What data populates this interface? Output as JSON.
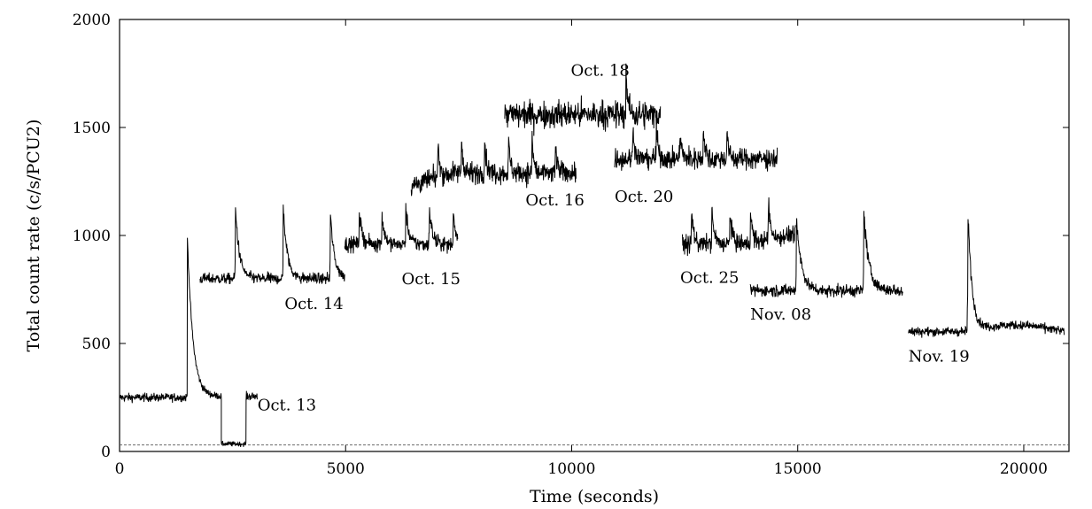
{
  "chart_data": {
    "type": "line",
    "xlabel": "Time (seconds)",
    "ylabel": "Total count rate (c/s/PCU2)",
    "xlim": [
      0,
      21000
    ],
    "ylim": [
      0,
      2000
    ],
    "xticks": [
      0,
      5000,
      10000,
      15000,
      20000
    ],
    "yticks": [
      0,
      500,
      1000,
      1500,
      2000
    ],
    "grid": false,
    "colors": {
      "trace": "#000000",
      "background_line": "#555555"
    },
    "background_level": 30,
    "series": [
      {
        "name": "Oct. 13",
        "label_at": [
          3050,
          190
        ],
        "segments": [
          {
            "x": [
              0,
              1480
            ],
            "level": 250,
            "noise": 14
          },
          {
            "x": [
              2250,
              2800
            ],
            "level": 35,
            "noise": 8
          },
          {
            "x": [
              2800,
              3050
            ],
            "level": 255,
            "noise": 14
          }
        ],
        "flares": [
          {
            "x": 1500,
            "peak": 1000,
            "decay": 120,
            "segment": 0
          }
        ],
        "bridge": {
          "x": [
            1480,
            2250
          ],
          "level": 255
        }
      },
      {
        "name": "Oct. 14",
        "label_at": [
          3650,
          660
        ],
        "segments": [
          {
            "x": [
              1780,
              4980
            ],
            "level": 800,
            "noise": 18
          }
        ],
        "flares": [
          {
            "x": 2560,
            "peak": 1160,
            "decay": 90
          },
          {
            "x": 3620,
            "peak": 1160,
            "decay": 90
          },
          {
            "x": 4660,
            "peak": 1130,
            "decay": 90
          }
        ]
      },
      {
        "name": "Oct. 15",
        "label_at": [
          6240,
          775
        ],
        "segments": [
          {
            "x": [
              4980,
              7480
            ],
            "level": 960,
            "noise": 25
          }
        ],
        "flares": [
          {
            "x": 5300,
            "peak": 1130,
            "decay": 60
          },
          {
            "x": 5800,
            "peak": 1120,
            "decay": 60
          },
          {
            "x": 6330,
            "peak": 1150,
            "decay": 60
          },
          {
            "x": 6850,
            "peak": 1150,
            "decay": 60
          },
          {
            "x": 7380,
            "peak": 1130,
            "decay": 60
          }
        ]
      },
      {
        "name": "Oct. 16",
        "label_at": [
          8980,
          1140
        ],
        "segments": [
          {
            "x": [
              6450,
              10100
            ],
            "level": 1290,
            "noise": 35,
            "start": 1230
          }
        ],
        "flares": [
          {
            "x": 7040,
            "peak": 1480,
            "decay": 40
          },
          {
            "x": 7560,
            "peak": 1470,
            "decay": 40
          },
          {
            "x": 8070,
            "peak": 1480,
            "decay": 40
          },
          {
            "x": 8600,
            "peak": 1470,
            "decay": 40
          },
          {
            "x": 9120,
            "peak": 1480,
            "decay": 40
          },
          {
            "x": 9640,
            "peak": 1430,
            "decay": 40
          }
        ]
      },
      {
        "name": "Oct. 18",
        "label_at": [
          9980,
          1740
        ],
        "segments": [
          {
            "x": [
              8520,
              11970
            ],
            "level": 1560,
            "noise": 45
          }
        ],
        "flares": [
          {
            "x": 11200,
            "peak": 1790,
            "decay": 40
          }
        ]
      },
      {
        "name": "Oct. 20",
        "label_at": [
          10950,
          1155
        ],
        "segments": [
          {
            "x": [
              10950,
              14550
            ],
            "level": 1355,
            "noise": 35
          }
        ],
        "flares": [
          {
            "x": 11350,
            "peak": 1550,
            "decay": 40
          },
          {
            "x": 11870,
            "peak": 1520,
            "decay": 40
          },
          {
            "x": 12390,
            "peak": 1500,
            "decay": 40
          },
          {
            "x": 12910,
            "peak": 1510,
            "decay": 40
          },
          {
            "x": 13430,
            "peak": 1510,
            "decay": 40
          }
        ]
      },
      {
        "name": "Oct. 25",
        "label_at": [
          12400,
          780
        ],
        "segments": [
          {
            "x": [
              12450,
              14950
            ],
            "level": 960,
            "noise": 30,
            "end": 1010
          }
        ],
        "flares": [
          {
            "x": 12650,
            "peak": 1130,
            "decay": 50
          },
          {
            "x": 13100,
            "peak": 1130,
            "decay": 50
          },
          {
            "x": 13500,
            "peak": 1120,
            "decay": 50
          },
          {
            "x": 13950,
            "peak": 1140,
            "decay": 50
          },
          {
            "x": 14350,
            "peak": 1180,
            "decay": 50
          }
        ]
      },
      {
        "name": "Nov. 08",
        "label_at": [
          13950,
          610
        ],
        "segments": [
          {
            "x": [
              13950,
              17330
            ],
            "level": 745,
            "noise": 20
          }
        ],
        "flares": [
          {
            "x": 14970,
            "peak": 1120,
            "decay": 110
          },
          {
            "x": 16460,
            "peak": 1150,
            "decay": 110
          }
        ]
      },
      {
        "name": "Nov. 19",
        "label_at": [
          17450,
          415
        ],
        "segments": [
          {
            "x": [
              17450,
              20900
            ],
            "level": 555,
            "noise": 15,
            "bump": 585
          }
        ],
        "flares": [
          {
            "x": 18760,
            "peak": 1190,
            "decay": 90
          }
        ]
      }
    ]
  }
}
